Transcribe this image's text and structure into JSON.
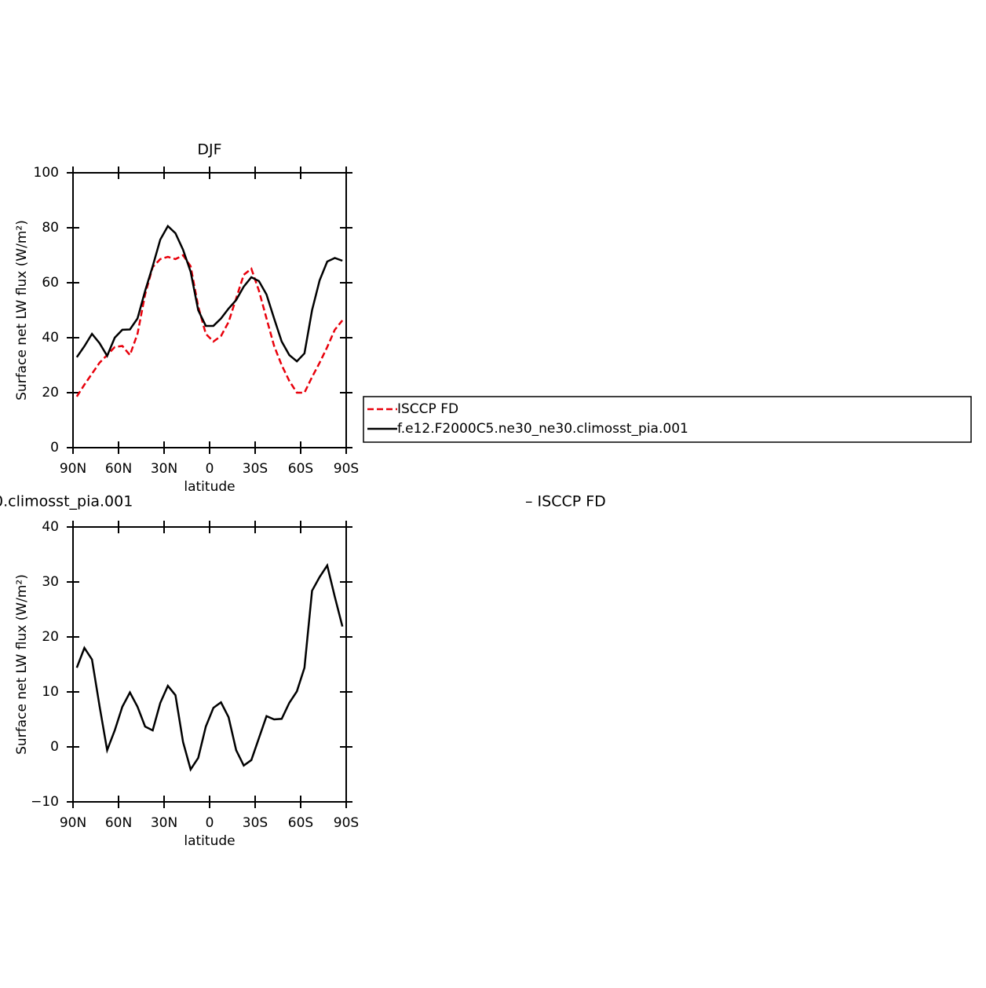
{
  "chart_data": [
    {
      "type": "line",
      "title": "DJF",
      "xlabel": "latitude",
      "ylabel": "Surface net LW flux (W/m²)",
      "x": [
        87.5,
        82.5,
        77.5,
        72.5,
        67.5,
        62.5,
        57.5,
        52.5,
        47.5,
        42.5,
        37.5,
        32.5,
        27.5,
        22.5,
        17.5,
        12.5,
        7.5,
        2.5,
        -2.5,
        -7.5,
        -12.5,
        -17.5,
        -22.5,
        -27.5,
        -32.5,
        -37.5,
        -42.5,
        -47.5,
        -52.5,
        -57.5,
        -62.5,
        -67.5,
        -72.5,
        -77.5,
        -82.5,
        -87.5
      ],
      "series": [
        {
          "name": "ISCCP FD",
          "color": "#e8000b",
          "dash": true,
          "values": [
            18.6,
            22.9,
            26.9,
            30.9,
            33.7,
            36.6,
            37,
            33.7,
            41.4,
            55.7,
            65.7,
            68.6,
            69.4,
            68.6,
            70,
            66,
            51.4,
            41.4,
            38.6,
            40.6,
            45.7,
            54.3,
            62.9,
            65.1,
            57.1,
            47,
            37,
            30,
            24.3,
            20,
            20,
            25.7,
            30.9,
            36.6,
            42.9,
            46.3
          ]
        },
        {
          "name": "f.e12.F2000C5.ne30_ne30.climosst_pia.001",
          "color": "#000000",
          "dash": false,
          "values": [
            32.9,
            36.9,
            41.4,
            38,
            33.4,
            40,
            42.9,
            43,
            47,
            57,
            66,
            75.7,
            80.6,
            78,
            72,
            64,
            50,
            44.3,
            44.3,
            47,
            50.6,
            53.7,
            58.6,
            62,
            60.6,
            55.7,
            47,
            38.6,
            33.7,
            31.4,
            34.3,
            50,
            60.9,
            67.7,
            69,
            68
          ]
        }
      ],
      "xlim": [
        90,
        -90
      ],
      "xticks": [
        {
          "value": 90,
          "label": "90N"
        },
        {
          "value": 60,
          "label": "60N"
        },
        {
          "value": 30,
          "label": "30N"
        },
        0,
        {
          "value": -30,
          "label": "30S"
        },
        {
          "value": -60,
          "label": "60S"
        },
        {
          "value": -90,
          "label": "90S"
        }
      ],
      "ylim": [
        0,
        100
      ],
      "yticks": [
        0,
        20,
        40,
        60,
        80,
        100
      ],
      "legend": "right"
    },
    {
      "type": "line",
      "title": "0.climosst_pia.001",
      "subtitle": "– ISCCP FD",
      "xlabel": "latitude",
      "ylabel": "Surface net LW flux (W/m²)",
      "x": [
        87.5,
        82.5,
        77.5,
        72.5,
        67.5,
        62.5,
        57.5,
        52.5,
        47.5,
        42.5,
        37.5,
        32.5,
        27.5,
        22.5,
        17.5,
        12.5,
        7.5,
        2.5,
        -2.5,
        -7.5,
        -12.5,
        -17.5,
        -22.5,
        -27.5,
        -32.5,
        -37.5,
        -42.5,
        -47.5,
        -52.5,
        -57.5,
        -62.5,
        -67.5,
        -72.5,
        -77.5,
        -82.5,
        -87.5
      ],
      "values": [
        14.4,
        18,
        15.9,
        7.4,
        -0.6,
        3,
        7.3,
        9.9,
        7.3,
        3.7,
        3,
        8,
        11.1,
        9.4,
        0.9,
        -4.1,
        -2,
        3.7,
        7.1,
        8.1,
        5.4,
        -0.6,
        -3.4,
        -2.4,
        1.6,
        5.6,
        5,
        5.1,
        8,
        10.1,
        14.4,
        28.4,
        30.9,
        33,
        27.3,
        21.9
      ],
      "color": "#000000",
      "xlim": [
        90,
        -90
      ],
      "xticks": [
        {
          "value": 90,
          "label": "90N"
        },
        {
          "value": 60,
          "label": "60N"
        },
        {
          "value": 30,
          "label": "30N"
        },
        0,
        {
          "value": -30,
          "label": "30S"
        },
        {
          "value": -60,
          "label": "60S"
        },
        {
          "value": -90,
          "label": "90S"
        }
      ],
      "ylim": [
        -10,
        40
      ],
      "yticks": [
        {
          "value": -10,
          "label": "−10"
        },
        0,
        10,
        20,
        30,
        40
      ]
    }
  ]
}
